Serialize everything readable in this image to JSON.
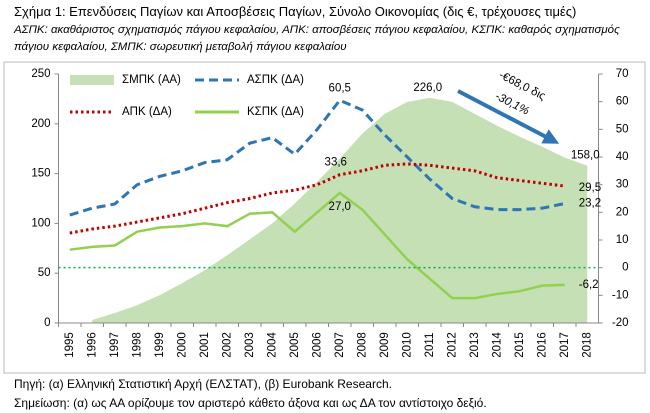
{
  "chart_data": {
    "type": "bar_area_line",
    "title": "Σχήμα 1: Επενδύσεις Παγίων και Αποσβέσεις Παγίων, Σύνολο Οικονομίας (δις €, τρέχουσες τιμές)",
    "subtitle": "ΑΣΠΚ: ακαθάριστος σχηματισμός πάγιου κεφαλαίου, ΑΠΚ: αποσβέσεις πάγιου κεφαλαίου, ΚΣΠΚ: καθαρός σχηματισμός πάγιου κεφαλαίου, ΣΜΠΚ: σωρευτική μεταβολή πάγιου κεφαλαίου",
    "categories": [
      "1995",
      "1996",
      "1997",
      "1998",
      "1999",
      "2000",
      "2001",
      "2002",
      "2003",
      "2004",
      "2005",
      "2006",
      "2007",
      "2008",
      "2009",
      "2010",
      "2011",
      "2012",
      "2013",
      "2014",
      "2015",
      "2016",
      "2017",
      "2018"
    ],
    "ylim": [
      0,
      250
    ],
    "yticks": [
      0,
      50,
      100,
      150,
      200,
      250
    ],
    "y2lim": [
      -20,
      70
    ],
    "y2ticks": [
      -20,
      -10,
      0,
      10,
      20,
      30,
      40,
      50,
      60,
      70
    ],
    "y2_zero_line": true,
    "legend": "upper left",
    "series": [
      {
        "name": "ΣΜΠΚ (ΑΑ)",
        "kind": "area",
        "color": "#c5e0b4",
        "values": [
          null,
          3,
          10,
          18,
          28,
          40,
          53,
          68,
          84,
          100,
          120,
          142,
          165,
          190,
          210,
          222,
          226,
          222,
          210,
          198,
          187,
          177,
          166,
          158
        ],
        "value_labels": [
          null,
          null,
          null,
          null,
          null,
          null,
          null,
          null,
          null,
          null,
          null,
          null,
          null,
          null,
          null,
          null,
          "226,0",
          null,
          null,
          null,
          null,
          null,
          null,
          "158,0"
        ]
      },
      {
        "name": "ΑΣΠΚ (ΔΑ)",
        "kind": "dashed",
        "axis": "y2",
        "color": "#2e75b6",
        "values": [
          19,
          21.5,
          23,
          30,
          33,
          35,
          38,
          39,
          45,
          47,
          41,
          50,
          60.5,
          57,
          48,
          40,
          32,
          25,
          22,
          21,
          21,
          21.5,
          23.2,
          null
        ],
        "value_labels": [
          null,
          null,
          null,
          null,
          null,
          null,
          null,
          null,
          null,
          null,
          null,
          null,
          "60,5",
          null,
          null,
          null,
          null,
          null,
          null,
          null,
          null,
          null,
          "23,2",
          null
        ]
      },
      {
        "name": "ΑΠΚ (ΔΑ)",
        "kind": "dotted",
        "axis": "y2",
        "color": "#c00000",
        "values": [
          12.5,
          14,
          15,
          16.5,
          18,
          19.5,
          21.5,
          23.5,
          25,
          27,
          28,
          30,
          33.6,
          35,
          37,
          37.5,
          37,
          36,
          35,
          32.5,
          31.5,
          30.5,
          29.5,
          null
        ],
        "value_labels": [
          null,
          null,
          null,
          null,
          null,
          null,
          null,
          null,
          null,
          null,
          null,
          null,
          "33,6",
          null,
          null,
          null,
          null,
          null,
          null,
          null,
          null,
          null,
          "29,5",
          null
        ]
      },
      {
        "name": "ΚΣΠΚ (ΔΑ)",
        "kind": "solid",
        "axis": "y2",
        "color": "#92d050",
        "values": [
          6.5,
          7.5,
          8,
          13,
          14.5,
          15,
          16,
          15,
          19.5,
          20,
          13,
          20,
          27,
          21,
          12,
          3,
          -4,
          -11,
          -11,
          -9.5,
          -8.5,
          -6.5,
          -6.2,
          null
        ],
        "value_labels": [
          null,
          null,
          null,
          null,
          null,
          null,
          null,
          null,
          null,
          null,
          null,
          null,
          "27,0",
          null,
          null,
          null,
          null,
          null,
          null,
          null,
          null,
          null,
          "-6,2",
          null
        ]
      }
    ],
    "annotations": [
      "-€68,0 δις",
      "-30,1%"
    ],
    "source": "Πηγή: (α) Ελληνική Στατιστική Αρχή (ΕΛΣΤΑΤ), (β) Eurobank Research.",
    "note": "Σημείωση: (α) ως ΑΑ ορίζουμε τον αριστερό κάθετο άξονα και ως ΔΑ τον αντίστοιχο δεξιό."
  }
}
